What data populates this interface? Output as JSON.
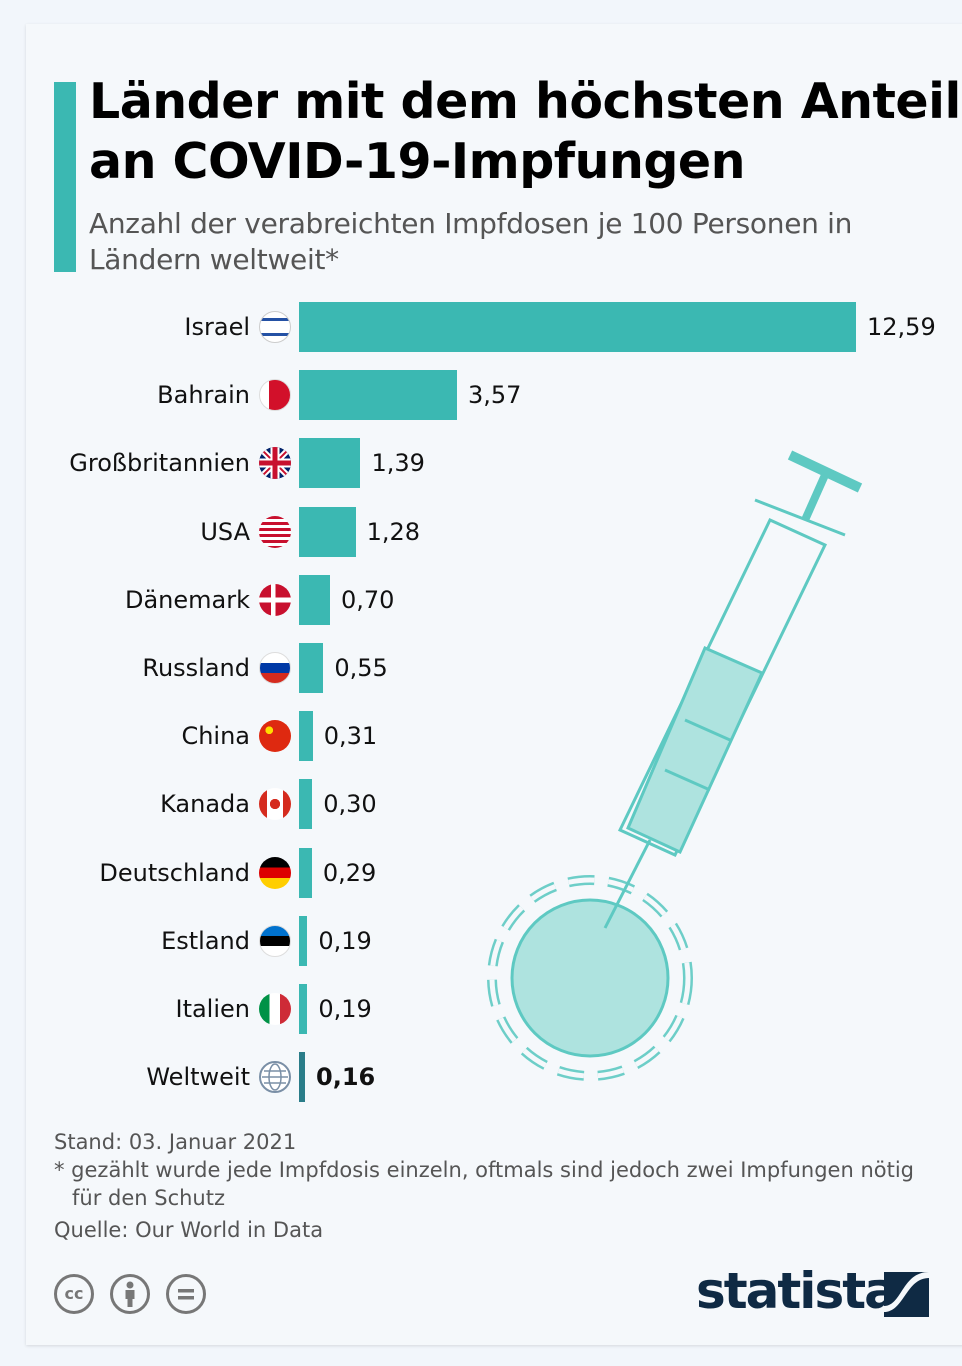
{
  "chart_data": {
    "type": "bar",
    "orientation": "horizontal",
    "title": "Länder mit dem höchsten Anteil an COVID-19-Impfungen",
    "subtitle": "Anzahl der verabreichten Impfdosen je 100 Personen in Ländern weltweit*",
    "categories": [
      "Israel",
      "Bahrain",
      "Großbritannien",
      "USA",
      "Dänemark",
      "Russland",
      "China",
      "Kanada",
      "Deutschland",
      "Estland",
      "Italien",
      "Weltweit"
    ],
    "values": [
      12.59,
      3.57,
      1.39,
      1.28,
      0.7,
      0.55,
      0.31,
      0.3,
      0.29,
      0.19,
      0.19,
      0.16
    ],
    "value_labels": [
      "12,59",
      "3,57",
      "1,39",
      "1,28",
      "0,70",
      "0,55",
      "0,31",
      "0,30",
      "0,29",
      "0,19",
      "0,19",
      "0,16"
    ],
    "flags": [
      "israel-flag",
      "bahrain-flag",
      "uk-flag",
      "usa-flag",
      "denmark-flag",
      "russia-flag",
      "china-flag",
      "canada-flag",
      "germany-flag",
      "estonia-flag",
      "italy-flag",
      "globe-icon"
    ],
    "bar_color": "#3bb8b2",
    "highlight_color": "#2a7d89",
    "grid": false
  },
  "footer": {
    "date": "Stand: 03. Januar 2021",
    "note": "* gezählt wurde jede Impfdosis einzeln, oftmals sind jedoch zwei Impfungen nötig",
    "note2": "für den Schutz",
    "source": "Quelle: Our World in Data"
  },
  "brand": {
    "logo": "statista",
    "color": "#0f2a44"
  },
  "license": {
    "cc": "cc"
  }
}
